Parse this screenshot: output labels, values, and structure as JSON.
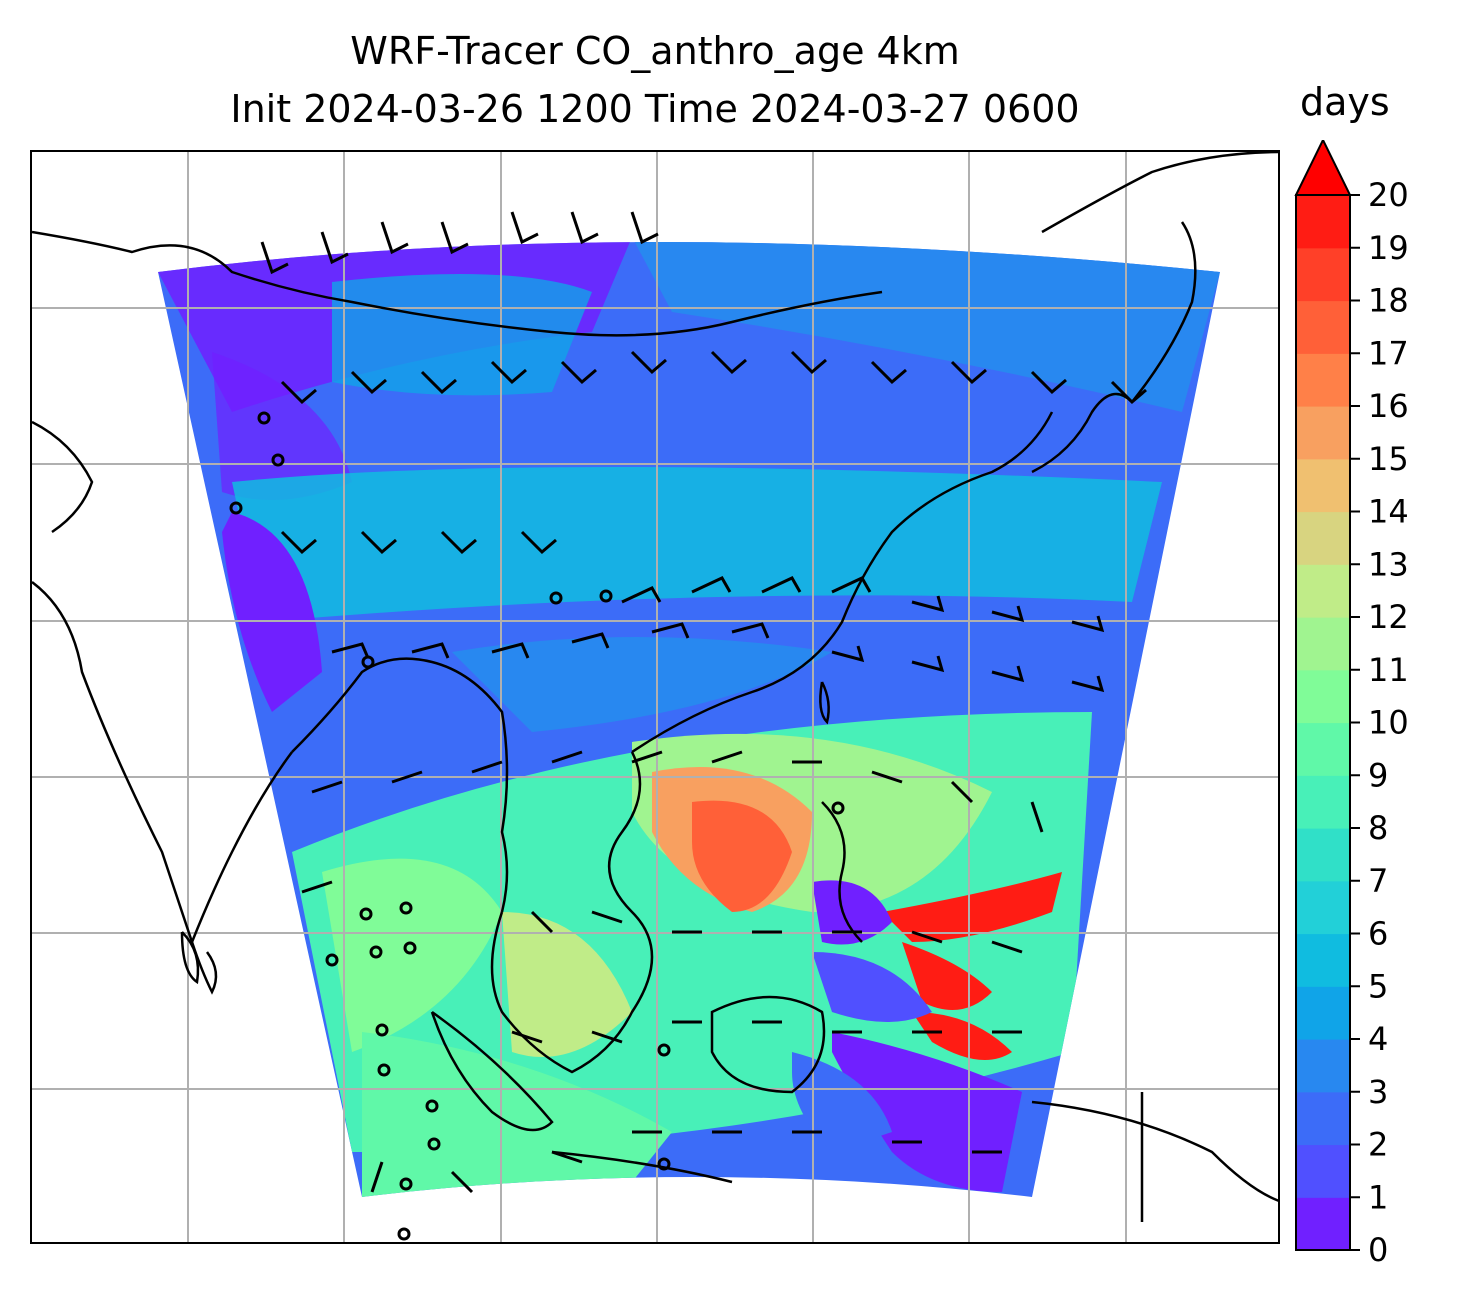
{
  "title_line1": "WRF-Tracer CO_anthro_age 4km",
  "title_line2": "Init 2024-03-26 1200 Time 2024-03-27 0600",
  "colorbar": {
    "label": "days",
    "min": 0,
    "max": 20,
    "extend": "max",
    "ticks": [
      "0",
      "1",
      "2",
      "3",
      "4",
      "5",
      "6",
      "7",
      "8",
      "9",
      "10",
      "11",
      "12",
      "13",
      "14",
      "15",
      "16",
      "17",
      "18",
      "19",
      "20"
    ],
    "colors": [
      "#7020ff",
      "#5050ff",
      "#3c6cf8",
      "#2888f0",
      "#10a4e8",
      "#10bce0",
      "#22d0d8",
      "#30e0c8",
      "#48f0b8",
      "#60f8a8",
      "#80fc98",
      "#a0f490",
      "#c0ec88",
      "#d8d480",
      "#f0c070",
      "#f8a060",
      "#ff8048",
      "#ff6038",
      "#ff4028",
      "#ff1c14"
    ],
    "extend_color": "#ff0000"
  },
  "map": {
    "field": "CO_anthro_age",
    "units": "days",
    "gridlines": true,
    "overlays": [
      "coastlines",
      "wind-barbs"
    ]
  }
}
